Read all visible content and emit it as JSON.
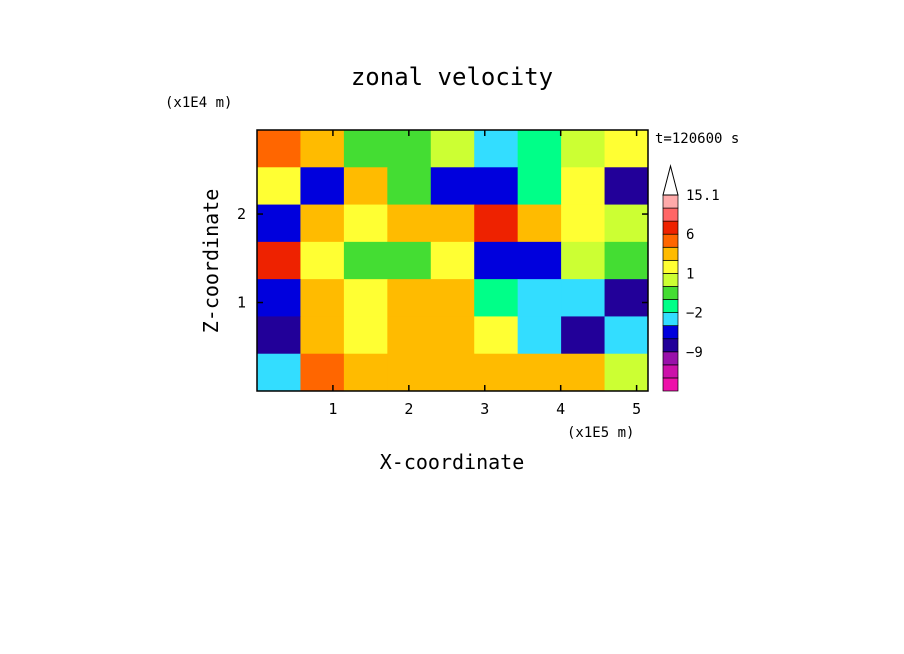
{
  "chart_data": {
    "type": "heatmap",
    "title": "zonal velocity",
    "xlabel": "X-coordinate",
    "ylabel": "Z-coordinate",
    "x_unit": "(x1E5 m)",
    "y_unit": "(x1E4 m)",
    "time_label": "t=120600 s",
    "xlim": [
      0,
      5.15
    ],
    "ylim": [
      0,
      2.95
    ],
    "x_ticks": [
      "1",
      "2",
      "3",
      "4",
      "5"
    ],
    "y_ticks": [
      "1",
      "2"
    ],
    "grid": false,
    "colorbar": {
      "levels": [
        -15,
        -12,
        -9,
        -6,
        -4,
        -2,
        -1,
        0,
        1,
        2,
        4,
        6,
        9,
        12,
        15.1
      ],
      "labels": [
        "15.1",
        "6",
        "1",
        "−2",
        "−9"
      ],
      "colors": [
        "#ee11aa",
        "#cc11aa",
        "#9911aa",
        "#220099",
        "#0000dd",
        "#33ddff",
        "#00ff88",
        "#44dd33",
        "#ccff33",
        "#ffff33",
        "#ffbb00",
        "#ff6600",
        "#ee2200",
        "#ff6666",
        "#ffaaaa"
      ]
    },
    "field": {
      "nx": 9,
      "nz": 7,
      "z_levels_from_top": [
        2.8,
        2.4,
        2.0,
        1.6,
        1.2,
        0.8,
        0.4
      ],
      "x_cells": [
        0.3,
        0.85,
        1.45,
        2.05,
        2.65,
        3.25,
        3.85,
        4.45,
        5.0
      ],
      "values": [
        [
          6,
          3,
          0,
          0,
          1,
          -3,
          -1,
          1,
          2
        ],
        [
          2,
          -5,
          4,
          0,
          -5,
          -5,
          -1,
          2,
          -6
        ],
        [
          -5,
          3,
          2,
          3,
          3,
          7,
          3,
          2,
          1
        ],
        [
          7,
          2,
          0,
          0,
          2,
          -5,
          -5,
          1,
          0
        ],
        [
          -5,
          3,
          2,
          3,
          3,
          -1,
          -2,
          -2,
          -6
        ],
        [
          -6,
          4,
          2,
          4,
          3,
          2,
          -2,
          -6,
          -2
        ],
        [
          -2,
          5,
          4,
          3,
          3,
          4,
          3,
          4,
          1
        ]
      ]
    }
  }
}
